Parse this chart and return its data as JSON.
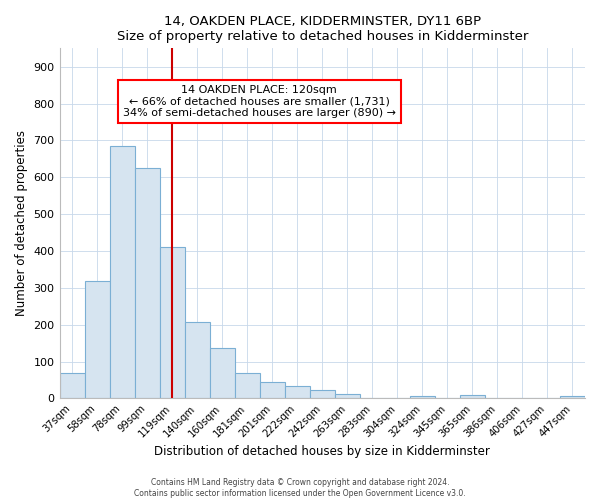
{
  "title": "14, OAKDEN PLACE, KIDDERMINSTER, DY11 6BP",
  "subtitle": "Size of property relative to detached houses in Kidderminster",
  "xlabel": "Distribution of detached houses by size in Kidderminster",
  "ylabel": "Number of detached properties",
  "categories": [
    "37sqm",
    "58sqm",
    "78sqm",
    "99sqm",
    "119sqm",
    "140sqm",
    "160sqm",
    "181sqm",
    "201sqm",
    "222sqm",
    "242sqm",
    "263sqm",
    "283sqm",
    "304sqm",
    "324sqm",
    "345sqm",
    "365sqm",
    "386sqm",
    "406sqm",
    "427sqm",
    "447sqm"
  ],
  "values": [
    70,
    320,
    685,
    625,
    410,
    208,
    138,
    68,
    46,
    35,
    22,
    12,
    0,
    0,
    8,
    0,
    10,
    0,
    0,
    0,
    8
  ],
  "bar_color": "#d6e4f0",
  "bar_edge_color": "#7bafd4",
  "vline_x_index": 4,
  "vline_color": "#cc0000",
  "annotation_line1": "14 OAKDEN PLACE: 120sqm",
  "annotation_line2": "← 66% of detached houses are smaller (1,731)",
  "annotation_line3": "34% of semi-detached houses are larger (890) →",
  "grid_color": "#c8d8ea",
  "background_color": "#ffffff",
  "footer_line1": "Contains HM Land Registry data © Crown copyright and database right 2024.",
  "footer_line2": "Contains public sector information licensed under the Open Government Licence v3.0.",
  "ylim": [
    0,
    950
  ],
  "yticks": [
    0,
    100,
    200,
    300,
    400,
    500,
    600,
    700,
    800,
    900
  ]
}
